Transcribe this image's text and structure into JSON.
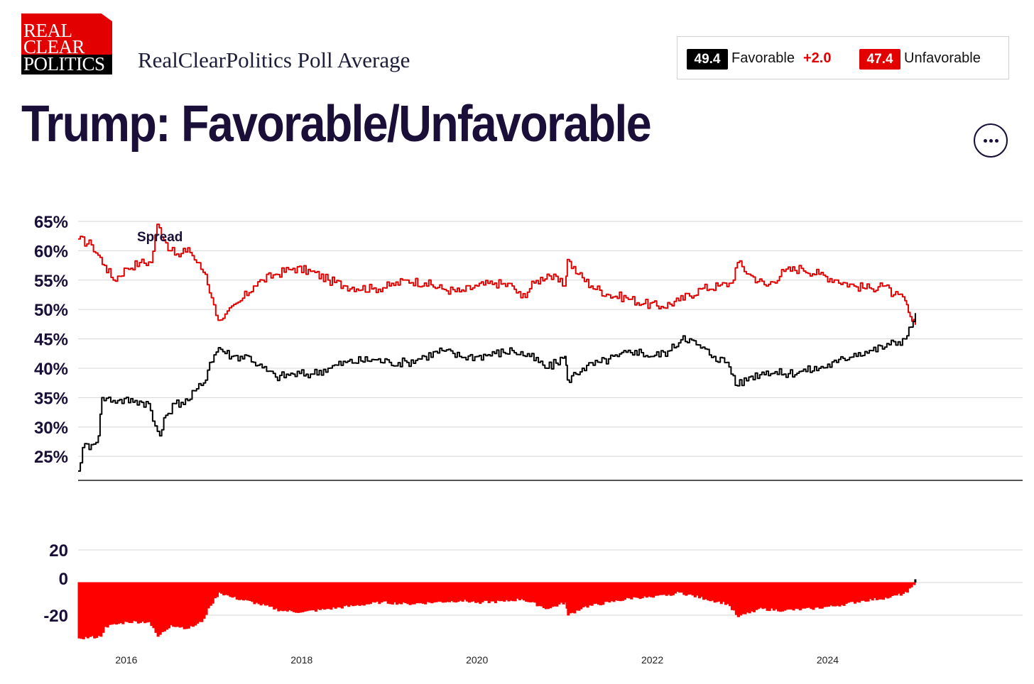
{
  "logo": {
    "line1": "REAL",
    "line2": "CLEAR",
    "line3": "POLITICS"
  },
  "header": {
    "subtitle": "RealClearPolitics Poll Average"
  },
  "legend": {
    "favorable_value": "49.4",
    "favorable_label": "Favorable",
    "spread": "+2.0",
    "unfavorable_value": "47.4",
    "unfavorable_label": "Unfavorable"
  },
  "title": "Trump: Favorable/Unfavorable",
  "colors": {
    "favorable": "#000000",
    "unfavorable": "#e20000",
    "spread_fill": "#ff0000",
    "title": "#1a0f38"
  },
  "chart_data": {
    "type": "line",
    "title": "Trump: Favorable/Unfavorable",
    "annotation": "Spread",
    "ylim": [
      22,
      65
    ],
    "yticks": [
      25,
      30,
      35,
      40,
      45,
      50,
      55,
      60,
      65
    ],
    "ytick_labels": [
      "25%",
      "30%",
      "35%",
      "40%",
      "45%",
      "50%",
      "55%",
      "60%",
      "65%"
    ],
    "xticks": [
      2016,
      2018,
      2020,
      2022,
      2024
    ],
    "xtick_labels": [
      "2016",
      "2018",
      "2020",
      "2022",
      "2024"
    ],
    "xlim": [
      2015.45,
      2025.9
    ],
    "grid": true,
    "series": [
      {
        "name": "Unfavorable",
        "points": [
          [
            2015.45,
            62.0
          ],
          [
            2015.6,
            61.0
          ],
          [
            2015.75,
            57.5
          ],
          [
            2015.85,
            55.0
          ],
          [
            2016.0,
            57.0
          ],
          [
            2016.15,
            58.0
          ],
          [
            2016.28,
            58.0
          ],
          [
            2016.35,
            64.5
          ],
          [
            2016.5,
            60.0
          ],
          [
            2016.6,
            59.0
          ],
          [
            2016.7,
            60.5
          ],
          [
            2016.8,
            58.0
          ],
          [
            2016.9,
            56.0
          ],
          [
            2016.97,
            52.0
          ],
          [
            2017.02,
            49.0
          ],
          [
            2017.1,
            48.5
          ],
          [
            2017.3,
            51.5
          ],
          [
            2017.45,
            54.0
          ],
          [
            2017.55,
            55.0
          ],
          [
            2017.7,
            56.0
          ],
          [
            2017.9,
            57.0
          ],
          [
            2018.1,
            56.5
          ],
          [
            2018.3,
            55.0
          ],
          [
            2018.5,
            54.0
          ],
          [
            2018.8,
            53.5
          ],
          [
            2019.0,
            54.0
          ],
          [
            2019.2,
            55.0
          ],
          [
            2019.4,
            54.5
          ],
          [
            2019.6,
            53.5
          ],
          [
            2019.8,
            53.0
          ],
          [
            2020.0,
            54.0
          ],
          [
            2020.2,
            54.5
          ],
          [
            2020.4,
            54.0
          ],
          [
            2020.5,
            52.0
          ],
          [
            2020.65,
            54.5
          ],
          [
            2020.8,
            56.0
          ],
          [
            2021.0,
            54.0
          ],
          [
            2021.03,
            58.5
          ],
          [
            2021.15,
            56.0
          ],
          [
            2021.3,
            54.0
          ],
          [
            2021.5,
            52.5
          ],
          [
            2021.7,
            52.0
          ],
          [
            2021.9,
            51.0
          ],
          [
            2022.1,
            50.5
          ],
          [
            2022.3,
            51.5
          ],
          [
            2022.55,
            53.5
          ],
          [
            2022.75,
            54.0
          ],
          [
            2022.9,
            54.5
          ],
          [
            2022.97,
            58.0
          ],
          [
            2023.1,
            56.0
          ],
          [
            2023.3,
            54.0
          ],
          [
            2023.5,
            56.5
          ],
          [
            2023.7,
            57.0
          ],
          [
            2023.9,
            56.0
          ],
          [
            2024.1,
            55.0
          ],
          [
            2024.3,
            54.0
          ],
          [
            2024.5,
            53.5
          ],
          [
            2024.6,
            54.5
          ],
          [
            2024.75,
            52.5
          ],
          [
            2024.88,
            51.5
          ],
          [
            2024.92,
            49.5
          ],
          [
            2024.96,
            48.0
          ],
          [
            2025.0,
            47.4
          ]
        ]
      },
      {
        "name": "Favorable",
        "points": [
          [
            2015.45,
            22.5
          ],
          [
            2015.5,
            26.5
          ],
          [
            2015.6,
            27.0
          ],
          [
            2015.68,
            28.5
          ],
          [
            2015.72,
            35.0
          ],
          [
            2015.9,
            34.5
          ],
          [
            2016.1,
            34.5
          ],
          [
            2016.25,
            34.0
          ],
          [
            2016.3,
            31.0
          ],
          [
            2016.38,
            28.5
          ],
          [
            2016.45,
            32.0
          ],
          [
            2016.55,
            34.0
          ],
          [
            2016.7,
            34.5
          ],
          [
            2016.8,
            36.5
          ],
          [
            2016.88,
            37.5
          ],
          [
            2016.95,
            41.0
          ],
          [
            2017.05,
            43.5
          ],
          [
            2017.2,
            42.0
          ],
          [
            2017.4,
            42.0
          ],
          [
            2017.5,
            40.5
          ],
          [
            2017.7,
            38.5
          ],
          [
            2017.9,
            39.0
          ],
          [
            2018.1,
            39.0
          ],
          [
            2018.3,
            40.0
          ],
          [
            2018.5,
            41.0
          ],
          [
            2018.8,
            41.5
          ],
          [
            2019.0,
            41.0
          ],
          [
            2019.2,
            41.0
          ],
          [
            2019.4,
            42.0
          ],
          [
            2019.6,
            43.0
          ],
          [
            2019.8,
            42.0
          ],
          [
            2020.0,
            42.0
          ],
          [
            2020.2,
            42.5
          ],
          [
            2020.4,
            43.0
          ],
          [
            2020.6,
            42.0
          ],
          [
            2020.8,
            40.0
          ],
          [
            2021.0,
            42.0
          ],
          [
            2021.03,
            38.0
          ],
          [
            2021.2,
            40.0
          ],
          [
            2021.4,
            41.0
          ],
          [
            2021.6,
            42.0
          ],
          [
            2021.8,
            43.0
          ],
          [
            2022.0,
            42.0
          ],
          [
            2022.2,
            43.0
          ],
          [
            2022.35,
            45.5
          ],
          [
            2022.5,
            44.0
          ],
          [
            2022.7,
            42.0
          ],
          [
            2022.85,
            41.0
          ],
          [
            2022.97,
            37.0
          ],
          [
            2023.1,
            38.5
          ],
          [
            2023.3,
            39.5
          ],
          [
            2023.5,
            39.0
          ],
          [
            2023.7,
            39.5
          ],
          [
            2023.9,
            40.0
          ],
          [
            2024.1,
            41.0
          ],
          [
            2024.3,
            42.5
          ],
          [
            2024.5,
            43.0
          ],
          [
            2024.7,
            44.0
          ],
          [
            2024.88,
            45.0
          ],
          [
            2024.95,
            47.0
          ],
          [
            2025.0,
            49.4
          ]
        ]
      }
    ],
    "spread_chart": {
      "type": "area",
      "ylim": [
        -35,
        25
      ],
      "yticks": [
        -20,
        0,
        20
      ],
      "ytick_labels": [
        "-20",
        "0",
        "20"
      ],
      "points": [
        [
          2015.45,
          -34.0
        ],
        [
          2015.7,
          -33.0
        ],
        [
          2015.75,
          -27.0
        ],
        [
          2016.0,
          -24.0
        ],
        [
          2016.25,
          -24.0
        ],
        [
          2016.35,
          -33.0
        ],
        [
          2016.5,
          -26.0
        ],
        [
          2016.7,
          -28.0
        ],
        [
          2016.85,
          -24.0
        ],
        [
          2016.95,
          -14.0
        ],
        [
          2017.05,
          -6.0
        ],
        [
          2017.2,
          -9.0
        ],
        [
          2017.5,
          -13.0
        ],
        [
          2017.75,
          -17.0
        ],
        [
          2018.0,
          -18.0
        ],
        [
          2018.3,
          -16.0
        ],
        [
          2018.6,
          -14.0
        ],
        [
          2018.9,
          -12.0
        ],
        [
          2019.2,
          -13.0
        ],
        [
          2019.5,
          -12.0
        ],
        [
          2019.8,
          -11.0
        ],
        [
          2020.0,
          -12.0
        ],
        [
          2020.3,
          -11.5
        ],
        [
          2020.5,
          -10.0
        ],
        [
          2020.8,
          -16.0
        ],
        [
          2021.0,
          -12.0
        ],
        [
          2021.03,
          -20.0
        ],
        [
          2021.2,
          -15.0
        ],
        [
          2021.5,
          -12.0
        ],
        [
          2021.8,
          -9.0
        ],
        [
          2022.0,
          -9.0
        ],
        [
          2022.3,
          -6.0
        ],
        [
          2022.6,
          -10.0
        ],
        [
          2022.85,
          -13.0
        ],
        [
          2022.97,
          -21.0
        ],
        [
          2023.2,
          -16.0
        ],
        [
          2023.5,
          -17.0
        ],
        [
          2023.8,
          -16.0
        ],
        [
          2024.1,
          -14.0
        ],
        [
          2024.4,
          -11.0
        ],
        [
          2024.7,
          -9.0
        ],
        [
          2024.9,
          -6.0
        ],
        [
          2024.97,
          -1.0
        ],
        [
          2025.0,
          2.0
        ]
      ]
    }
  }
}
